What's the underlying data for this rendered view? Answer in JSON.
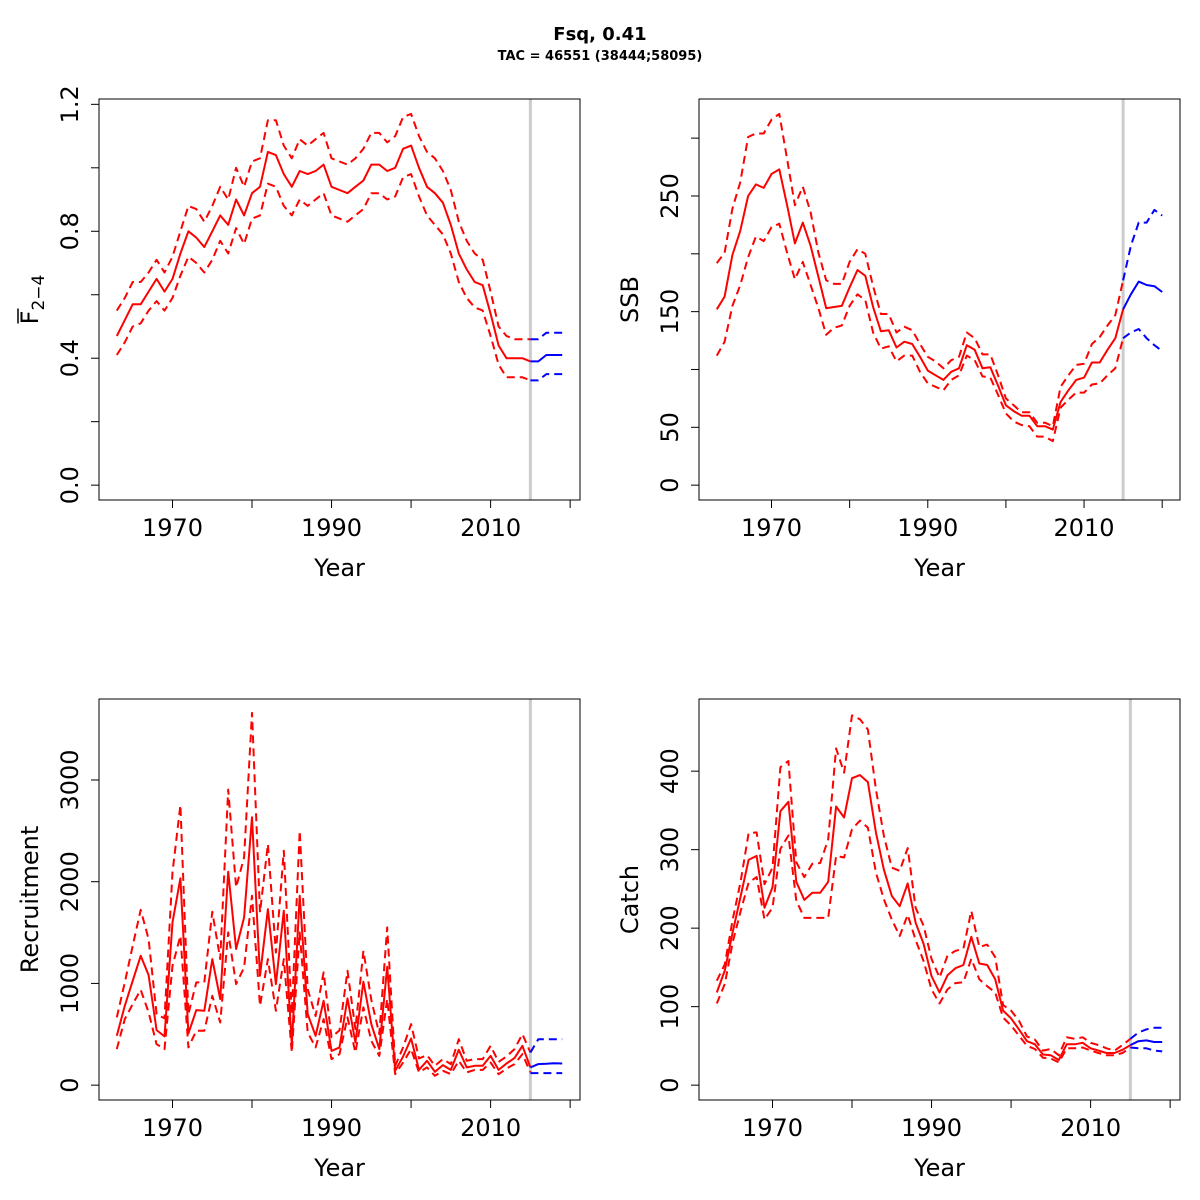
{
  "title": "Fsq, 0.41",
  "subtitle": "TAC = 46551 (38444;58095)",
  "colors": {
    "history": "#ff0000",
    "forecast": "#0000ff",
    "divider": "#cccccc"
  },
  "chart_data": [
    {
      "type": "line",
      "xlabel": "Year",
      "ylabel": "F",
      "ylabel_subscript": "2−4",
      "ylabel_overbar": true,
      "xlim": [
        1963,
        2019
      ],
      "ylim": [
        0,
        1.17
      ],
      "xticks": [
        1970,
        1980,
        1990,
        2000,
        2010,
        2020
      ],
      "xticklabels": [
        "1970",
        "",
        "1990",
        "",
        "2010",
        ""
      ],
      "yticks": [
        0,
        0.2,
        0.4,
        0.6,
        0.8,
        1.0,
        1.2
      ],
      "yticklabels": [
        "0.0",
        "",
        "0.4",
        "",
        "0.8",
        "",
        "1.2"
      ],
      "divider_year": 2015,
      "history": {
        "start_year": 1963,
        "median": [
          0.47,
          0.52,
          0.57,
          0.57,
          0.61,
          0.65,
          0.61,
          0.65,
          0.73,
          0.8,
          0.78,
          0.75,
          0.8,
          0.85,
          0.82,
          0.9,
          0.85,
          0.92,
          0.94,
          1.05,
          1.04,
          0.98,
          0.94,
          0.99,
          0.98,
          0.99,
          1.01,
          0.94,
          0.93,
          0.92,
          0.94,
          0.96,
          1.01,
          1.01,
          0.99,
          1.0,
          1.06,
          1.07,
          1.0,
          0.94,
          0.92,
          0.89,
          0.82,
          0.73,
          0.68,
          0.64,
          0.63,
          0.54,
          0.44,
          0.4,
          0.4,
          0.4,
          0.39
        ],
        "upper": [
          0.55,
          0.59,
          0.64,
          0.64,
          0.67,
          0.71,
          0.67,
          0.72,
          0.8,
          0.88,
          0.87,
          0.83,
          0.88,
          0.94,
          0.9,
          1.0,
          0.94,
          1.02,
          1.03,
          1.15,
          1.15,
          1.07,
          1.03,
          1.09,
          1.07,
          1.09,
          1.11,
          1.03,
          1.02,
          1.01,
          1.03,
          1.06,
          1.11,
          1.11,
          1.08,
          1.1,
          1.16,
          1.17,
          1.1,
          1.05,
          1.03,
          0.99,
          0.93,
          0.83,
          0.77,
          0.73,
          0.71,
          0.61,
          0.5,
          0.47,
          0.46,
          0.46,
          0.46
        ],
        "lower": [
          0.41,
          0.45,
          0.5,
          0.51,
          0.55,
          0.58,
          0.55,
          0.59,
          0.66,
          0.72,
          0.7,
          0.67,
          0.71,
          0.77,
          0.73,
          0.81,
          0.76,
          0.84,
          0.85,
          0.95,
          0.94,
          0.88,
          0.85,
          0.9,
          0.88,
          0.9,
          0.92,
          0.85,
          0.84,
          0.83,
          0.85,
          0.87,
          0.92,
          0.92,
          0.9,
          0.91,
          0.97,
          0.98,
          0.91,
          0.85,
          0.82,
          0.79,
          0.73,
          0.64,
          0.59,
          0.56,
          0.55,
          0.47,
          0.38,
          0.34,
          0.34,
          0.34,
          0.33
        ]
      },
      "forecast": {
        "start_year": 2015,
        "median": [
          0.39,
          0.39,
          0.41,
          0.41,
          0.41
        ],
        "upper": [
          0.46,
          0.46,
          0.48,
          0.48,
          0.48
        ],
        "lower": [
          0.33,
          0.33,
          0.35,
          0.35,
          0.35
        ]
      }
    },
    {
      "type": "line",
      "xlabel": "Year",
      "ylabel": "SSB",
      "xlim": [
        1963,
        2020
      ],
      "ylim": [
        0,
        321
      ],
      "xticks": [
        1970,
        1980,
        1990,
        2000,
        2010,
        2020
      ],
      "xticklabels": [
        "1970",
        "",
        "1990",
        "",
        "2010",
        ""
      ],
      "yticks": [
        0,
        50,
        100,
        150,
        200,
        250,
        300
      ],
      "yticklabels": [
        "0",
        "50",
        "",
        "150",
        "",
        "250",
        ""
      ],
      "divider_year": 2015,
      "history": {
        "start_year": 1963,
        "median": [
          152,
          163,
          199,
          220,
          250,
          260,
          257,
          269,
          273,
          242,
          209,
          227,
          207,
          180,
          153,
          154,
          155,
          171,
          186,
          181,
          154,
          133,
          134,
          119,
          124,
          122,
          111,
          99,
          95,
          91,
          98,
          101,
          121,
          117,
          101,
          102,
          86,
          69,
          64,
          60,
          60,
          51,
          51,
          48,
          72,
          82,
          91,
          93,
          106,
          106,
          117,
          127,
          152
        ],
        "upper": [
          192,
          201,
          239,
          262,
          301,
          304,
          304,
          316,
          321,
          282,
          242,
          258,
          236,
          201,
          177,
          174,
          174,
          193,
          204,
          200,
          172,
          148,
          148,
          132,
          137,
          134,
          122,
          111,
          107,
          101,
          108,
          111,
          132,
          127,
          113,
          113,
          95,
          75,
          69,
          63,
          63,
          54,
          54,
          51,
          85,
          95,
          104,
          105,
          122,
          128,
          138,
          147,
          177
        ],
        "lower": [
          112,
          124,
          155,
          173,
          197,
          215,
          211,
          223,
          226,
          201,
          178,
          193,
          173,
          153,
          130,
          136,
          138,
          155,
          165,
          160,
          132,
          118,
          120,
          107,
          112,
          112,
          98,
          88,
          85,
          82,
          91,
          95,
          112,
          108,
          94,
          93,
          78,
          62,
          55,
          52,
          51,
          42,
          42,
          38,
          67,
          74,
          80,
          80,
          87,
          88,
          95,
          101,
          127
        ]
      },
      "forecast": {
        "start_year": 2015,
        "median": [
          152,
          165,
          176,
          173,
          172,
          167
        ],
        "upper": [
          177,
          207,
          227,
          227,
          238,
          233
        ],
        "lower": [
          127,
          132,
          135,
          127,
          121,
          116
        ]
      }
    },
    {
      "type": "line",
      "xlabel": "Year",
      "ylabel": "Recruitment",
      "xlim": [
        1963,
        2019
      ],
      "ylim": [
        0,
        3650
      ],
      "xticks": [
        1970,
        1980,
        1990,
        2000,
        2010,
        2020
      ],
      "xticklabels": [
        "1970",
        "",
        "1990",
        "",
        "2010",
        ""
      ],
      "yticks": [
        0,
        1000,
        2000,
        3000
      ],
      "yticklabels": [
        "0",
        "1000",
        "2000",
        "3000"
      ],
      "divider_year": 2015,
      "history": {
        "start_year": 1963,
        "median": [
          485,
          780,
          1026,
          1272,
          1082,
          541,
          479,
          1600,
          2033,
          508,
          738,
          731,
          1239,
          846,
          2098,
          1338,
          1649,
          2633,
          1075,
          1731,
          993,
          1715,
          400,
          1862,
          698,
          485,
          829,
          337,
          371,
          853,
          420,
          1016,
          600,
          354,
          1164,
          141,
          282,
          459,
          150,
          239,
          131,
          197,
          150,
          347,
          174,
          190,
          190,
          288,
          150,
          213,
          266,
          387,
          174
        ],
        "upper": [
          666,
          1010,
          1370,
          1724,
          1436,
          698,
          656,
          2092,
          2754,
          698,
          1010,
          1010,
          1705,
          1239,
          2905,
          1945,
          2240,
          3659,
          1698,
          2370,
          1304,
          2305,
          700,
          2501,
          944,
          679,
          1108,
          472,
          538,
          1124,
          551,
          1321,
          839,
          502,
          1551,
          190,
          371,
          600,
          262,
          295,
          190,
          256,
          207,
          452,
          239,
          256,
          256,
          387,
          229,
          282,
          354,
          502,
          321
        ],
        "lower": [
          354,
          649,
          797,
          937,
          715,
          403,
          354,
          1173,
          1468,
          371,
          534,
          534,
          878,
          616,
          1502,
          993,
          1157,
          1862,
          780,
          1239,
          731,
          1239,
          321,
          1502,
          518,
          371,
          649,
          256,
          305,
          666,
          321,
          764,
          436,
          288,
          846,
          108,
          223,
          354,
          125,
          174,
          92,
          141,
          108,
          239,
          125,
          150,
          150,
          223,
          108,
          164,
          207,
          305,
          125
        ]
      },
      "forecast": {
        "start_year": 2015,
        "median": [
          174,
          207,
          210,
          216,
          213
        ],
        "upper": [
          321,
          452,
          452,
          452,
          452
        ],
        "lower": [
          118,
          118,
          118,
          118,
          118
        ]
      }
    },
    {
      "type": "line",
      "xlabel": "Year",
      "ylabel": "Catch",
      "xlim": [
        1963,
        2019
      ],
      "ylim": [
        0,
        473
      ],
      "xticks": [
        1970,
        1980,
        1990,
        2000,
        2010,
        2020
      ],
      "xticklabels": [
        "1970",
        "",
        "1990",
        "",
        "2010",
        ""
      ],
      "yticks": [
        0,
        100,
        200,
        300,
        400
      ],
      "yticklabels": [
        "0",
        "100",
        "200",
        "300",
        "400"
      ],
      "divider_year": 2015,
      "history": {
        "start_year": 1963,
        "median": [
          118,
          146,
          195,
          241,
          287,
          292,
          226,
          252,
          349,
          361,
          259,
          236,
          245,
          245,
          259,
          355,
          341,
          391,
          395,
          386,
          322,
          275,
          241,
          228,
          257,
          207,
          180,
          139,
          118,
          140,
          149,
          153,
          189,
          155,
          153,
          135,
          95,
          85,
          71,
          56,
          52,
          39,
          38,
          32,
          52,
          52,
          54,
          47,
          44,
          41,
          41,
          45,
          51
        ],
        "upper": [
          133,
          154,
          211,
          260,
          321,
          322,
          256,
          277,
          405,
          413,
          284,
          265,
          282,
          283,
          313,
          429,
          398,
          471,
          466,
          453,
          377,
          318,
          277,
          273,
          302,
          226,
          203,
          161,
          137,
          165,
          171,
          174,
          222,
          176,
          179,
          163,
          102,
          95,
          82,
          62,
          58,
          44,
          46,
          38,
          61,
          59,
          61,
          54,
          51,
          47,
          44,
          51,
          59
        ],
        "lower": [
          104,
          129,
          182,
          222,
          258,
          265,
          211,
          226,
          301,
          318,
          235,
          213,
          213,
          213,
          213,
          292,
          290,
          326,
          337,
          328,
          271,
          237,
          211,
          190,
          217,
          185,
          158,
          122,
          104,
          122,
          130,
          131,
          161,
          135,
          126,
          118,
          86,
          76,
          63,
          50,
          46,
          35,
          34,
          29,
          47,
          47,
          48,
          44,
          41,
          38,
          38,
          41,
          48
        ]
      },
      "forecast": {
        "start_year": 2015,
        "median": [
          51,
          56,
          57,
          55,
          55
        ],
        "upper": [
          59,
          67,
          71,
          73,
          73
        ],
        "lower": [
          48,
          47,
          47,
          44,
          43
        ]
      }
    }
  ]
}
